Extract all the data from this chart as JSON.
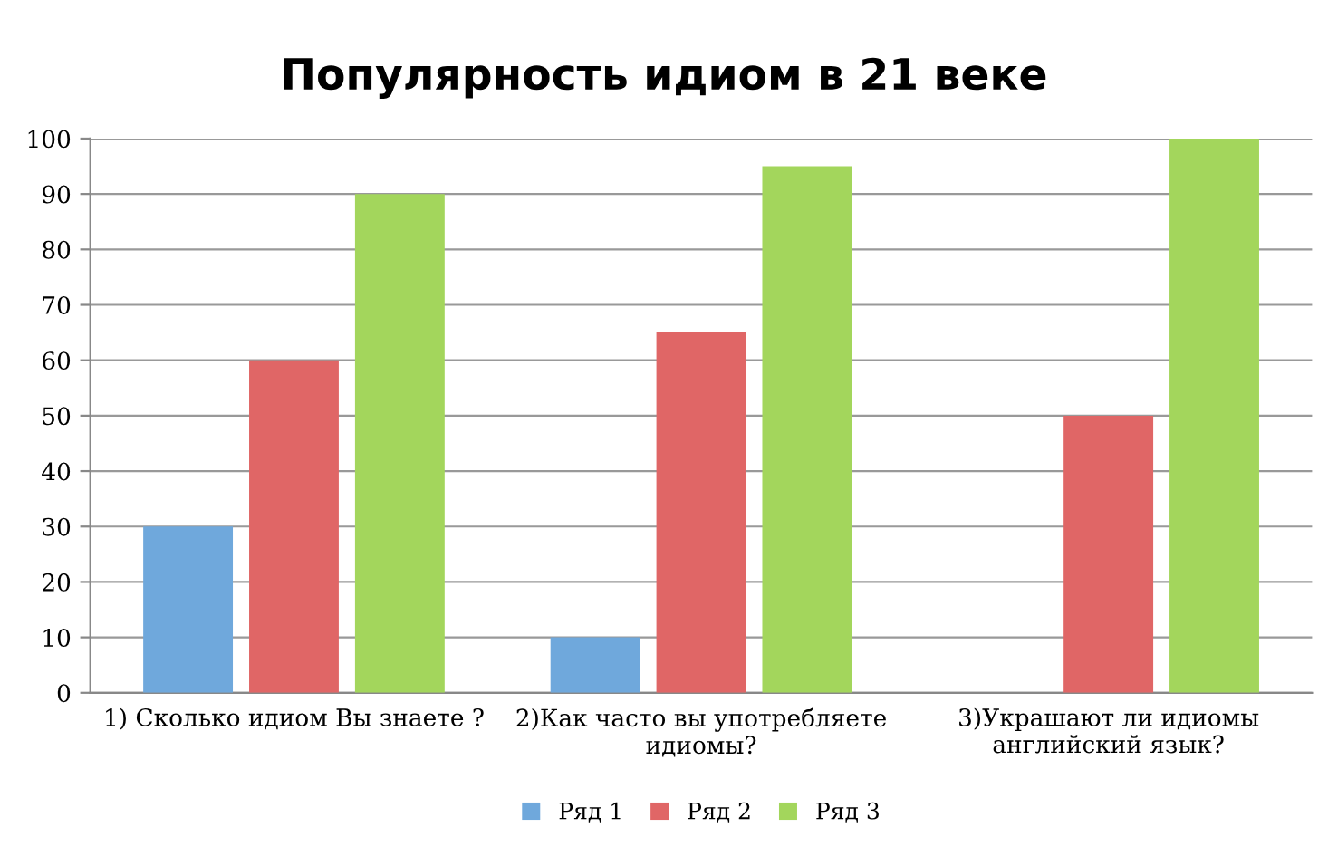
{
  "chart_data": {
    "type": "bar",
    "title": "Популярность идиом в 21 веке",
    "categories": [
      "1) Сколько идиом Вы знаете ?",
      "2)Как часто вы употребляете\nидиомы?",
      "3)Украшают ли идиомы\nанглийский язык?"
    ],
    "series": [
      {
        "name": "Ряд 1",
        "color": "#6fa8dc",
        "values": [
          30,
          10,
          null
        ]
      },
      {
        "name": "Ряд 2",
        "color": "#e06666",
        "values": [
          60,
          65,
          50
        ]
      },
      {
        "name": "Ряд 3",
        "color": "#a3d65c",
        "values": [
          90,
          95,
          100
        ]
      }
    ],
    "ylim": [
      0,
      100
    ],
    "yticks": [
      0,
      10,
      20,
      30,
      40,
      50,
      60,
      70,
      80,
      90,
      100
    ],
    "grid": "y",
    "legend": "bottom"
  }
}
